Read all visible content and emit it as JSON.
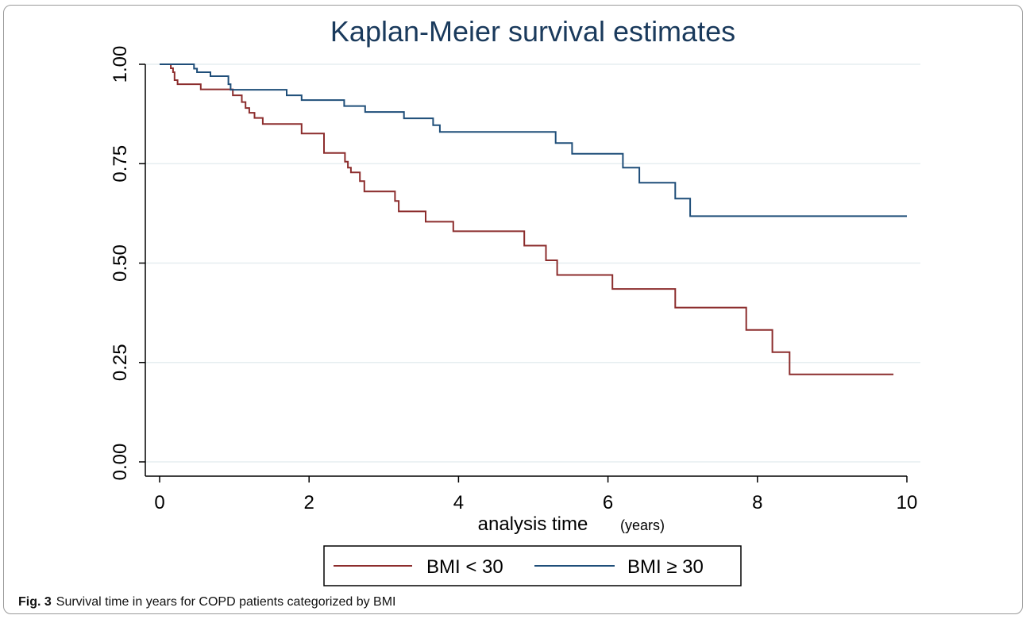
{
  "chart_data": {
    "type": "line",
    "step": true,
    "title": "Kaplan-Meier survival estimates",
    "xlabel": "analysis time",
    "xlabel_unit": "(years)",
    "ylabel": "",
    "xlim": [
      0,
      10
    ],
    "ylim": [
      0,
      1
    ],
    "x_ticks": [
      0,
      2,
      4,
      6,
      8,
      10
    ],
    "y_ticks": [
      0,
      0.25,
      0.5,
      0.75,
      1.0
    ],
    "y_tick_labels": [
      "0.00",
      "0.25",
      "0.50",
      "0.75",
      "1.00"
    ],
    "grid": "horizontal",
    "legend_position": "bottom",
    "series": [
      {
        "name": "BMI < 30",
        "color": "#8c2d2d",
        "points": [
          [
            0,
            1.0
          ],
          [
            0.15,
            0.99
          ],
          [
            0.18,
            0.98
          ],
          [
            0.2,
            0.96
          ],
          [
            0.24,
            0.95
          ],
          [
            0.55,
            0.937
          ],
          [
            0.98,
            0.922
          ],
          [
            1.1,
            0.905
          ],
          [
            1.15,
            0.89
          ],
          [
            1.2,
            0.878
          ],
          [
            1.27,
            0.865
          ],
          [
            1.38,
            0.85
          ],
          [
            1.9,
            0.826
          ],
          [
            2.2,
            0.777
          ],
          [
            2.48,
            0.755
          ],
          [
            2.52,
            0.74
          ],
          [
            2.56,
            0.728
          ],
          [
            2.68,
            0.706
          ],
          [
            2.74,
            0.68
          ],
          [
            3.15,
            0.656
          ],
          [
            3.2,
            0.63
          ],
          [
            3.56,
            0.604
          ],
          [
            3.93,
            0.58
          ],
          [
            4.88,
            0.544
          ],
          [
            5.17,
            0.507
          ],
          [
            5.32,
            0.47
          ],
          [
            6.06,
            0.435
          ],
          [
            6.9,
            0.388
          ],
          [
            7.85,
            0.332
          ],
          [
            8.2,
            0.276
          ],
          [
            8.43,
            0.22
          ],
          [
            9.82,
            0.22
          ]
        ]
      },
      {
        "name": "BMI ≥ 30",
        "color": "#1f4e79",
        "points": [
          [
            0,
            1.0
          ],
          [
            0.46,
            0.989
          ],
          [
            0.5,
            0.98
          ],
          [
            0.68,
            0.97
          ],
          [
            0.92,
            0.95
          ],
          [
            0.95,
            0.936
          ],
          [
            1.7,
            0.922
          ],
          [
            1.9,
            0.91
          ],
          [
            2.47,
            0.895
          ],
          [
            2.75,
            0.88
          ],
          [
            3.27,
            0.864
          ],
          [
            3.66,
            0.847
          ],
          [
            3.75,
            0.83
          ],
          [
            5.3,
            0.802
          ],
          [
            5.52,
            0.775
          ],
          [
            6.2,
            0.74
          ],
          [
            6.42,
            0.702
          ],
          [
            6.9,
            0.662
          ],
          [
            7.1,
            0.618
          ],
          [
            10.0,
            0.618
          ]
        ]
      }
    ]
  },
  "caption": {
    "label": "Fig. 3",
    "text": "Survival time in years for COPD patients categorized by BMI"
  }
}
